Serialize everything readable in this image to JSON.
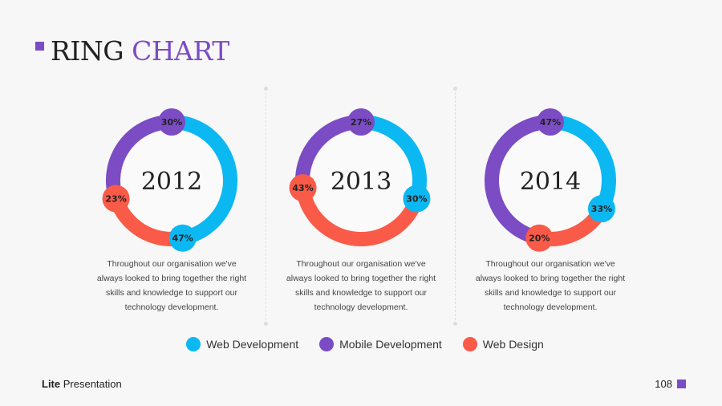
{
  "title": {
    "part1": "RING",
    "part2": "CHART"
  },
  "colors": {
    "web_development": "#0bb8f2",
    "mobile_development": "#7b4cc4",
    "web_design": "#fa5a48",
    "accent": "#7b4cc4"
  },
  "chart_data": {
    "type": "pie",
    "variant": "ring",
    "series_names": [
      "Web Development",
      "Web Design",
      "Mobile Development"
    ],
    "charts": [
      {
        "label": "2012",
        "values": [
          47,
          23,
          30
        ]
      },
      {
        "label": "2013",
        "values": [
          30,
          43,
          27
        ]
      },
      {
        "label": "2014",
        "values": [
          33,
          20,
          47
        ]
      }
    ],
    "legend": [
      "Web Development",
      "Mobile Development",
      "Web Design"
    ],
    "legend_placement": "bottom"
  },
  "descriptions": [
    {
      "l1": "Throughout our organisation we've",
      "l2": "always looked to bring together the right",
      "l3": "skills and knowledge to support our",
      "l4": "technology development."
    },
    {
      "l1": "Throughout our organisation we've",
      "l2": "always looked to bring together the right",
      "l3": "skills and knowledge to support our",
      "l4": "technology development."
    },
    {
      "l1": "Throughout our organisation we've",
      "l2": "always looked to bring together the right",
      "l3": "skills and knowledge to support our",
      "l4": "technology development."
    }
  ],
  "footer": {
    "brand_bold": "Lite",
    "brand_rest": " Presentation",
    "page": "108"
  }
}
